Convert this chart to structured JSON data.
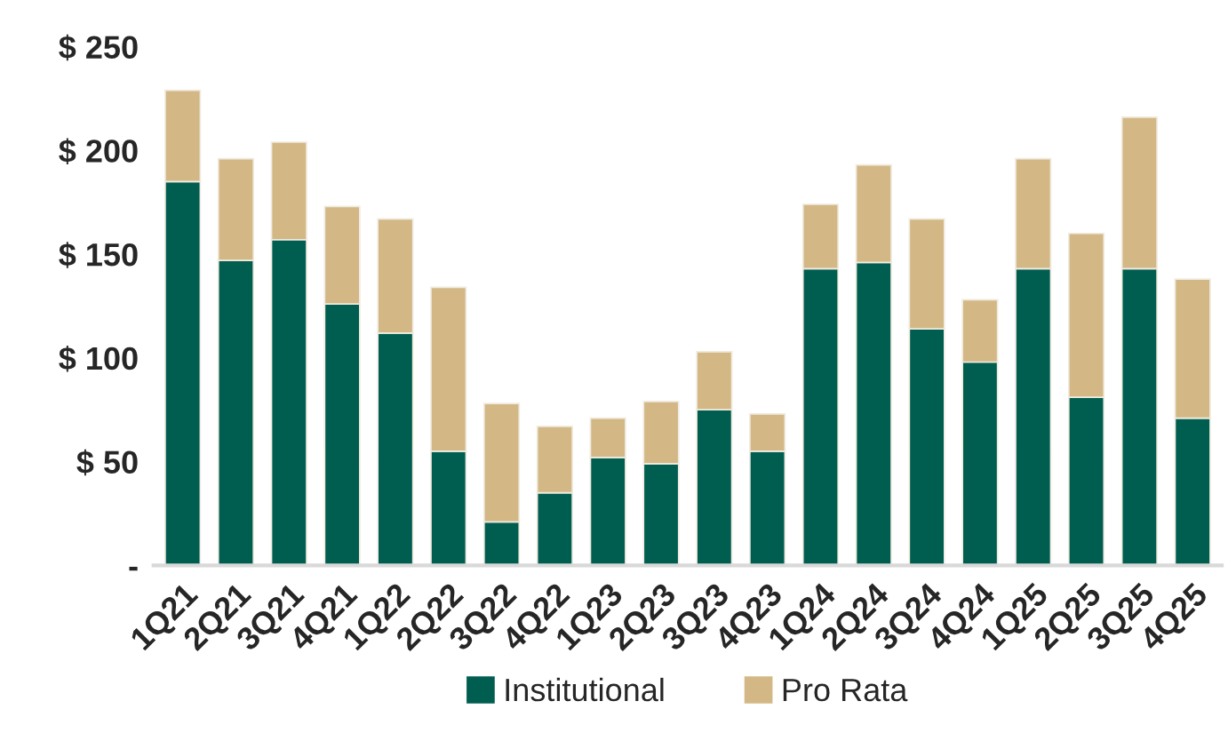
{
  "chart_data": {
    "type": "bar",
    "stacked": true,
    "categories": [
      "1Q21",
      "2Q21",
      "3Q21",
      "4Q21",
      "1Q22",
      "2Q22",
      "3Q22",
      "4Q22",
      "1Q23",
      "2Q23",
      "3Q23",
      "4Q23",
      "1Q24",
      "2Q24",
      "3Q24",
      "4Q24",
      "1Q25",
      "2Q25",
      "3Q25",
      "4Q25"
    ],
    "series": [
      {
        "name": "Institutional",
        "color": "#005e50",
        "values": [
          185,
          147,
          157,
          126,
          112,
          55,
          21,
          35,
          52,
          49,
          75,
          55,
          143,
          146,
          114,
          98,
          143,
          81,
          143,
          71
        ]
      },
      {
        "name": "Pro Rata",
        "color": "#d3b886",
        "values": [
          44,
          49,
          47,
          47,
          55,
          79,
          57,
          32,
          19,
          30,
          28,
          18,
          31,
          47,
          53,
          30,
          53,
          79,
          73,
          67
        ]
      }
    ],
    "ylim": [
      0,
      250
    ],
    "yticks": [
      {
        "value": 0,
        "label": "-"
      },
      {
        "value": 50,
        "label": "$ 50"
      },
      {
        "value": 100,
        "label": "$ 100"
      },
      {
        "value": 150,
        "label": "$ 150"
      },
      {
        "value": 200,
        "label": "$ 200"
      },
      {
        "value": 250,
        "label": "$ 250"
      }
    ],
    "grid": false,
    "legend": "bottom"
  }
}
